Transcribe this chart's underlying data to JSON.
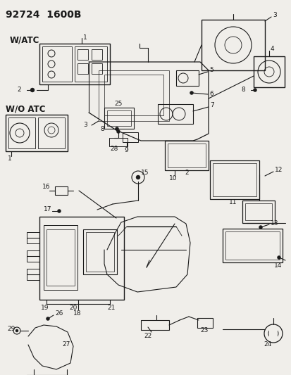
{
  "title": "92724  1600B",
  "bg_color": "#f0eeea",
  "line_color": "#1a1a1a",
  "fig_width": 4.14,
  "fig_height": 5.33,
  "dpi": 100
}
